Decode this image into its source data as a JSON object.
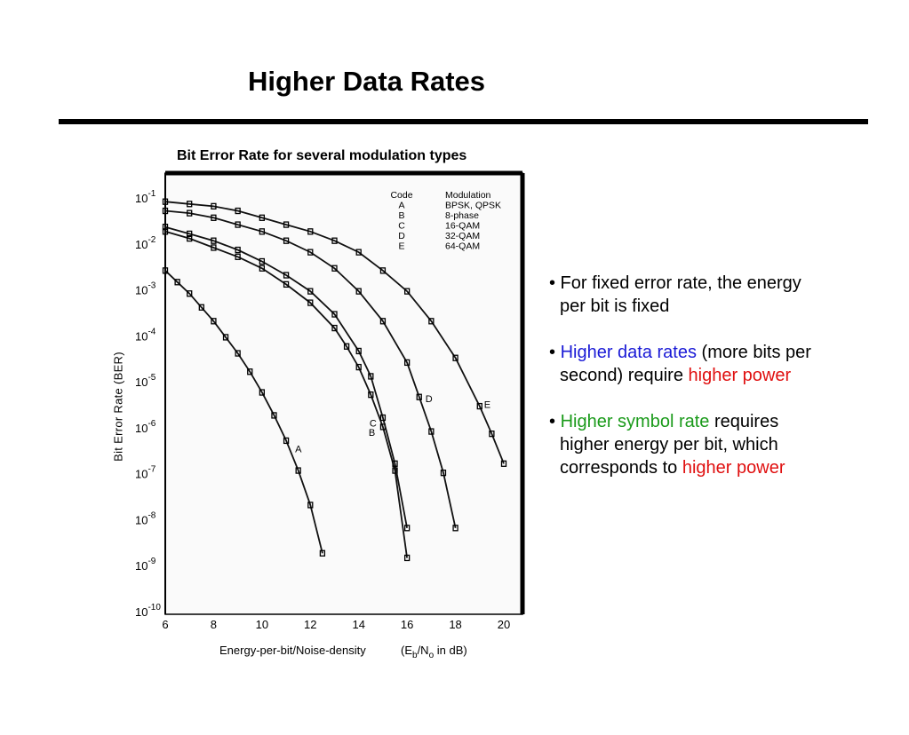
{
  "slide": {
    "title": "Higher Data Rates"
  },
  "chart_data": {
    "type": "line",
    "title": "Bit Error Rate for several modulation types",
    "xlabel": "Energy-per-bit/Noise-density",
    "xlabel_unit": {
      "prefix": "(E",
      "sub1": "b",
      "mid": "/N",
      "sub2": "o",
      "suffix": " in dB)"
    },
    "ylabel": "Bit Error Rate (BER)",
    "x_scale": "linear",
    "y_scale": "log",
    "xlim": [
      6,
      20
    ],
    "ylim_exponent": [
      -10,
      -1
    ],
    "x_ticks": [
      "6",
      "8",
      "10",
      "12",
      "14",
      "16",
      "18",
      "20"
    ],
    "y_ticks": [
      {
        "base": "10",
        "exp": "-1"
      },
      {
        "base": "10",
        "exp": "-2"
      },
      {
        "base": "10",
        "exp": "-3"
      },
      {
        "base": "10",
        "exp": "-4"
      },
      {
        "base": "10",
        "exp": "-5"
      },
      {
        "base": "10",
        "exp": "-6"
      },
      {
        "base": "10",
        "exp": "-7"
      },
      {
        "base": "10",
        "exp": "-8"
      },
      {
        "base": "10",
        "exp": "-9"
      },
      {
        "base": "10",
        "exp": "-10"
      }
    ],
    "legend": {
      "placement": "top-right",
      "header_code": "Code",
      "header_modulation": "Modulation",
      "rows": [
        {
          "code": "A",
          "modulation": "BPSK, QPSK"
        },
        {
          "code": "B",
          "modulation": "8-phase"
        },
        {
          "code": "C",
          "modulation": "16-QAM"
        },
        {
          "code": "D",
          "modulation": "32-QAM"
        },
        {
          "code": "E",
          "modulation": "64-QAM"
        }
      ]
    },
    "series": [
      {
        "name": "A",
        "x": [
          6,
          6.5,
          7,
          7.5,
          8,
          8.5,
          9,
          9.5,
          10,
          10.5,
          11,
          11.5,
          12,
          12.5
        ],
        "log10_y": [
          -2.6,
          -2.85,
          -3.1,
          -3.4,
          -3.7,
          -4.05,
          -4.4,
          -4.8,
          -5.25,
          -5.75,
          -6.3,
          -6.95,
          -7.7,
          -8.75
        ]
      },
      {
        "name": "B",
        "x": [
          6,
          7,
          8,
          9,
          10,
          11,
          12,
          13,
          13.5,
          14,
          14.5,
          15,
          15.5,
          16
        ],
        "log10_y": [
          -1.75,
          -1.9,
          -2.1,
          -2.3,
          -2.55,
          -2.9,
          -3.3,
          -3.85,
          -4.25,
          -4.7,
          -5.3,
          -6.0,
          -6.95,
          -8.85
        ]
      },
      {
        "name": "C",
        "x": [
          6,
          7,
          8,
          9,
          10,
          11,
          12,
          13,
          14,
          14.5,
          15,
          15.5,
          16
        ],
        "log10_y": [
          -1.65,
          -1.8,
          -1.95,
          -2.15,
          -2.4,
          -2.7,
          -3.05,
          -3.55,
          -4.35,
          -4.9,
          -5.8,
          -6.8,
          -8.2
        ]
      },
      {
        "name": "D",
        "x": [
          6,
          7,
          8,
          9,
          10,
          11,
          12,
          13,
          14,
          15,
          16,
          16.5,
          17,
          17.5,
          18
        ],
        "log10_y": [
          -1.3,
          -1.35,
          -1.45,
          -1.6,
          -1.75,
          -1.95,
          -2.2,
          -2.55,
          -3.05,
          -3.7,
          -4.6,
          -5.35,
          -6.1,
          -7.0,
          -8.2
        ]
      },
      {
        "name": "E",
        "x": [
          6,
          7,
          8,
          9,
          10,
          11,
          12,
          13,
          14,
          15,
          16,
          17,
          18,
          19,
          19.5,
          20
        ],
        "log10_y": [
          -1.1,
          -1.15,
          -1.2,
          -1.3,
          -1.45,
          -1.6,
          -1.75,
          -1.95,
          -2.2,
          -2.6,
          -3.05,
          -3.7,
          -4.5,
          -5.55,
          -6.15,
          -6.8
        ]
      }
    ],
    "curve_labels": [
      "A",
      "B",
      "C",
      "D",
      "E"
    ]
  },
  "bullets": [
    {
      "segments": [
        {
          "text": "• For fixed error rate, the energy",
          "color": "black"
        }
      ],
      "cont": [
        {
          "text": "per bit is fixed",
          "color": "black"
        }
      ]
    },
    {
      "segments": [
        {
          "text": "• ",
          "color": "black"
        },
        {
          "text": "Higher data rates",
          "color": "blue"
        },
        {
          "text": " (more bits per",
          "color": "black"
        }
      ],
      "cont": [
        {
          "text": "second) require ",
          "color": "black"
        },
        {
          "text": "higher power",
          "color": "red"
        }
      ]
    },
    {
      "segments": [
        {
          "text": "• ",
          "color": "black"
        },
        {
          "text": "Higher symbol rate",
          "color": "green"
        },
        {
          "text": " requires",
          "color": "black"
        }
      ],
      "cont": [
        {
          "text": "higher energy per bit, which",
          "color": "black"
        }
      ],
      "cont2": [
        {
          "text": "corresponds to ",
          "color": "black"
        },
        {
          "text": "higher power",
          "color": "red"
        }
      ]
    }
  ]
}
